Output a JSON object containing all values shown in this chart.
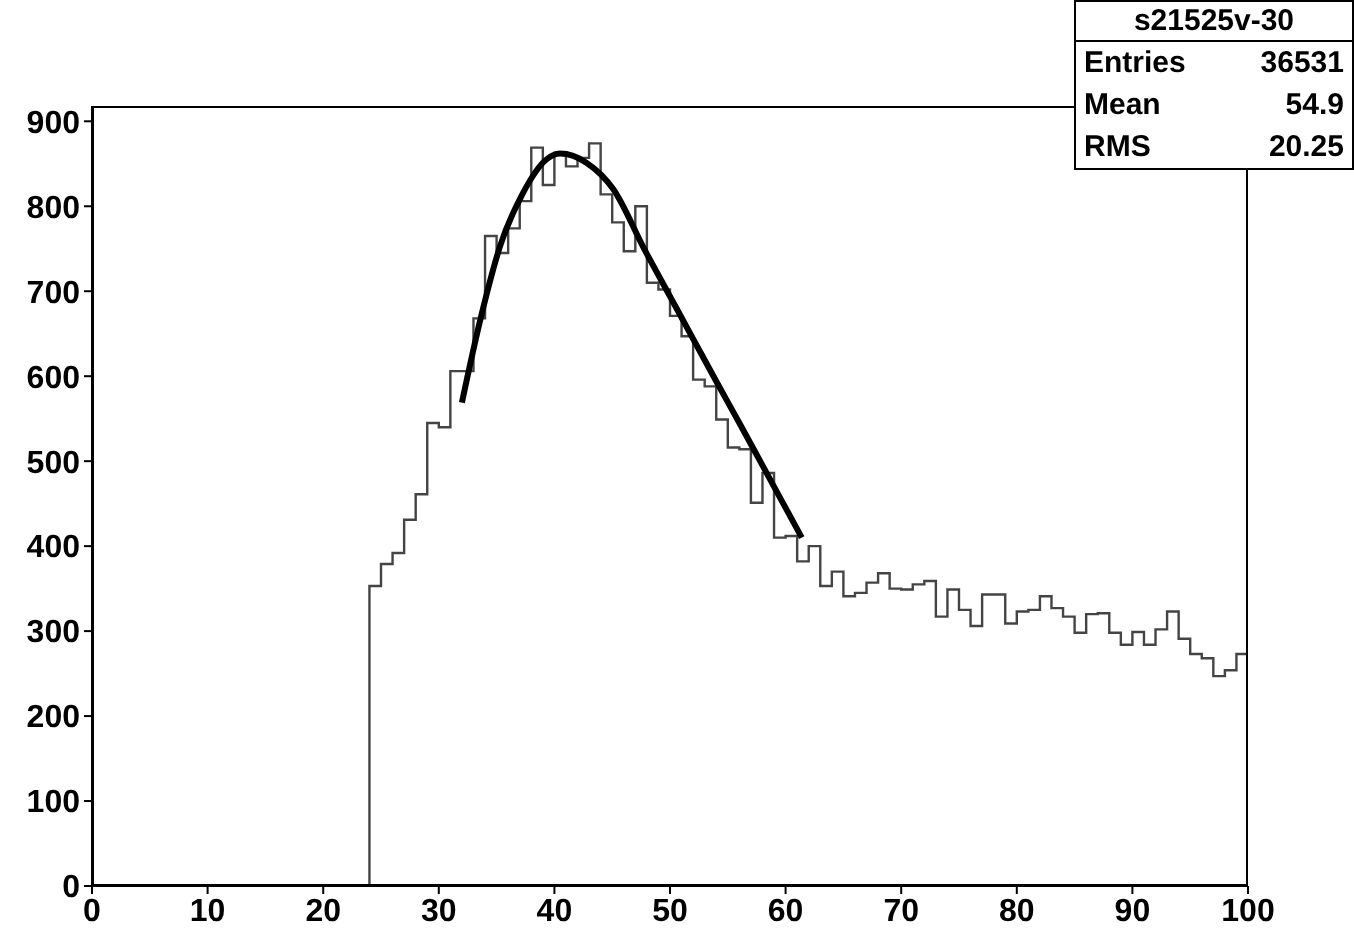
{
  "chart_data": {
    "type": "histogram",
    "xlim": [
      0,
      100
    ],
    "xticks": [
      0,
      10,
      20,
      30,
      40,
      50,
      60,
      70,
      80,
      90,
      100
    ],
    "ylim": [
      0,
      918
    ],
    "yticks": [
      0,
      100,
      200,
      300,
      400,
      500,
      600,
      700,
      800,
      900
    ],
    "grid": false,
    "annotations": [
      "s21525v-30",
      "Entries",
      "36531",
      "Mean",
      "54.9",
      "RMS",
      "20.25"
    ],
    "series": [
      {
        "color": "#444444",
        "bins": [
          0,
          1,
          2,
          3,
          4,
          5,
          6,
          7,
          8,
          9,
          10,
          11,
          12,
          13,
          14,
          15,
          16,
          17,
          18,
          19,
          20,
          21,
          22,
          23,
          24,
          25,
          26,
          27,
          28,
          29,
          30,
          31,
          32,
          33,
          34,
          35,
          36,
          37,
          38,
          39,
          40,
          41,
          42,
          43,
          44,
          45,
          46,
          47,
          48,
          49,
          50,
          51,
          52,
          53,
          54,
          55,
          56,
          57,
          58,
          59,
          60,
          61,
          62,
          63,
          64,
          65,
          66,
          67,
          68,
          69,
          70,
          71,
          72,
          73,
          74,
          75,
          76,
          77,
          78,
          79,
          80,
          81,
          82,
          83,
          84,
          85,
          86,
          87,
          88,
          89,
          90,
          91,
          92,
          93,
          94,
          95,
          96,
          97,
          98,
          99,
          100
        ],
        "values": [
          0,
          0,
          0,
          0,
          0,
          0,
          0,
          0,
          0,
          0,
          0,
          0,
          0,
          0,
          0,
          0,
          0,
          0,
          0,
          0,
          0,
          0,
          0,
          0,
          353,
          379,
          392,
          431,
          461,
          545,
          540,
          606,
          606,
          668,
          765,
          745,
          774,
          806,
          869,
          825,
          863,
          847,
          857,
          874,
          814,
          781,
          747,
          800,
          710,
          702,
          671,
          647,
          596,
          588,
          549,
          516,
          514,
          451,
          486,
          410,
          412,
          382,
          400,
          353,
          370,
          341,
          345,
          357,
          368,
          350,
          349,
          355,
          359,
          317,
          349,
          325,
          306,
          343,
          343,
          309,
          323,
          325,
          341,
          327,
          317,
          298,
          320,
          321,
          298,
          284,
          299,
          284,
          302,
          323,
          291,
          273,
          268,
          247,
          254,
          273
        ]
      },
      {
        "type": "line",
        "color": "#000000",
        "x": [
          32,
          33.6,
          35.3,
          37.3,
          39.3,
          40.5,
          42.8,
          45.1,
          47.8,
          50,
          52,
          54,
          56,
          58,
          60,
          61.4
        ],
        "values": [
          569,
          667,
          753,
          816,
          855,
          862,
          851,
          820,
          749,
          694,
          644,
          594,
          545,
          495,
          445,
          410
        ]
      }
    ]
  }
}
